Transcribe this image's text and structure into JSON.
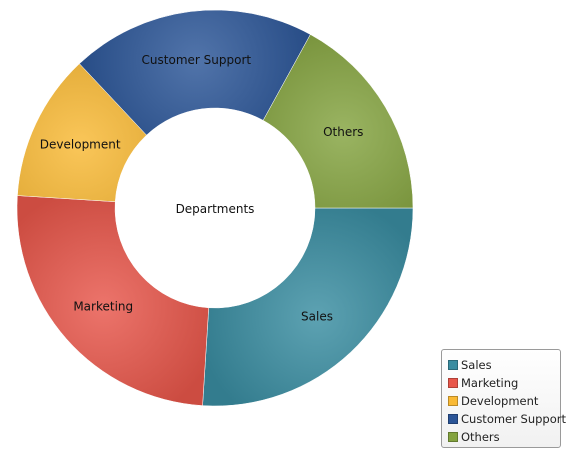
{
  "chart_data": {
    "type": "pie",
    "title": "",
    "center_label": "Departments",
    "legend_position": "bottom-right",
    "categories": [
      "Sales",
      "Marketing",
      "Development",
      "Customer Support",
      "Others"
    ],
    "values": [
      26,
      25,
      12,
      20,
      17
    ],
    "colors": [
      "#3a8da1",
      "#e8564a",
      "#f9b934",
      "#2b5597",
      "#84a33f"
    ],
    "unit": "%"
  }
}
